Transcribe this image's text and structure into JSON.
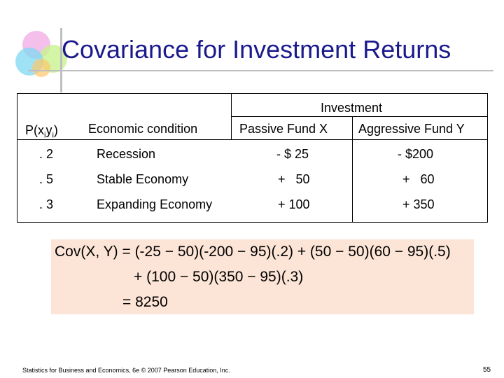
{
  "slide": {
    "title": "Covariance for Investment Returns",
    "footer": "Statistics for Business and Economics, 6e © 2007 Pearson Education, Inc.",
    "page_number": "55"
  },
  "table": {
    "group_header": "Investment",
    "col_prob_base": "P(x",
    "col_prob_sub1": "i",
    "col_prob_mid": "y",
    "col_prob_sub2": "i",
    "col_prob_end": ")",
    "col_condition": "Economic condition",
    "col_fund_x": "Passive Fund X",
    "col_fund_y": "Aggressive Fund Y",
    "rows": [
      {
        "prob": ". 2",
        "condition": "Recession",
        "x": "- $ 25",
        "y": "- $200"
      },
      {
        "prob": ". 5",
        "condition": "Stable Economy",
        "x": "+   50",
        "y": "+   60"
      },
      {
        "prob": ". 3",
        "condition": "Expanding Economy",
        "x": "+ 100",
        "y": "+ 350"
      }
    ]
  },
  "formula": {
    "line1": "Cov(X, Y) = (-25 − 50)(-200 − 95)(.2) + (50 − 50)(60 − 95)(.5)",
    "line2": "+ (100 − 50)(350 − 95)(.3)",
    "line3": "= 8250"
  }
}
